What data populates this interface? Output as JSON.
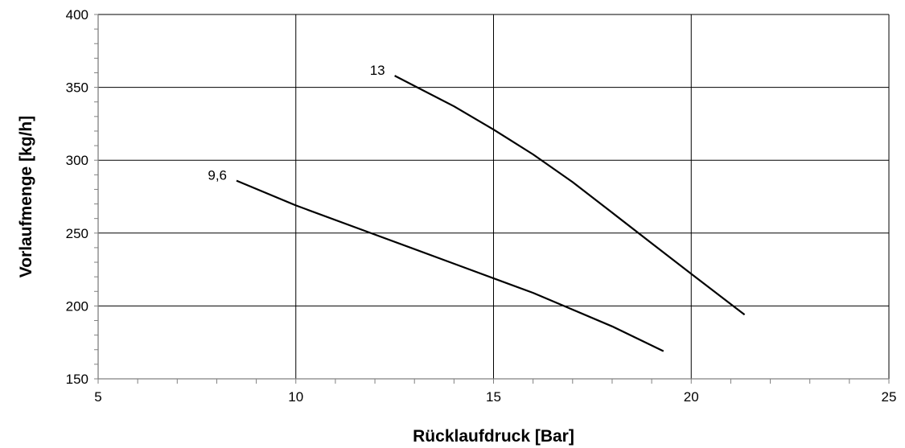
{
  "chart_data": {
    "type": "line",
    "title": "",
    "xlabel": "Rücklaufdruck [Bar]",
    "ylabel": "Vorlaufmenge [kg/h]",
    "xlim": [
      5,
      25
    ],
    "ylim": [
      150,
      400
    ],
    "xticks": [
      5,
      10,
      15,
      20,
      25
    ],
    "yticks": [
      150,
      200,
      250,
      300,
      350,
      400
    ],
    "x_tick_labels": [
      "5",
      "10",
      "15",
      "20",
      "25"
    ],
    "y_tick_labels": [
      "150",
      "200",
      "250",
      "300",
      "350",
      "400"
    ],
    "grid": true,
    "legend": "none",
    "colors": {
      "line": "#000000",
      "grid": "#000000",
      "axis": "#808080"
    },
    "series": [
      {
        "name": "9,6",
        "points": [
          [
            8.5,
            286
          ],
          [
            10,
            269
          ],
          [
            12,
            249
          ],
          [
            14,
            229
          ],
          [
            16,
            209
          ],
          [
            18,
            186
          ],
          [
            19.3,
            169
          ]
        ]
      },
      {
        "name": "13",
        "points": [
          [
            12.5,
            358
          ],
          [
            14,
            337
          ],
          [
            15,
            321
          ],
          [
            16,
            304
          ],
          [
            17,
            285
          ],
          [
            18,
            264
          ],
          [
            19,
            243
          ],
          [
            20,
            222
          ],
          [
            21.35,
            194
          ]
        ]
      }
    ]
  }
}
